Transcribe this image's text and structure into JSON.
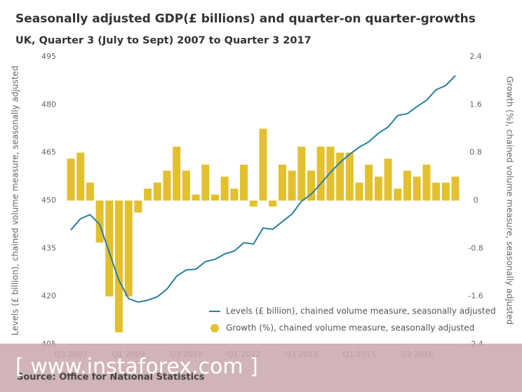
{
  "chart_data": {
    "type": "combo",
    "title": "Seasonally adjusted GDP(£ billions) and quarter-on quarter-growths",
    "subtitle": "UK, Quarter 3 (July to Sept) 2007 to Quarter 3 2017",
    "y_label": "Levels (£ billion), chained volume measure, seasonally adjusted",
    "y2_label": "Growth (%), chained volume measure, seasonally adjusted",
    "categories": [
      "Q3 2007",
      null,
      null,
      null,
      null,
      null,
      "Q1 2009",
      null,
      null,
      null,
      null,
      null,
      "Q3 2010",
      null,
      null,
      null,
      null,
      null,
      "Q1 2012",
      null,
      null,
      null,
      null,
      null,
      "Q3 2013",
      null,
      null,
      null,
      null,
      null,
      "Q1 2015",
      null,
      null,
      null,
      null,
      null,
      "Q3 2016",
      null,
      null,
      null,
      null
    ],
    "series": [
      {
        "name": "Levels (£ billion), chained volume measure, seasonally adjusted",
        "type": "line",
        "axis": "y",
        "color": "#2a7fa0",
        "values": [
          440.8,
          444.3,
          445.6,
          442.5,
          433.7,
          425,
          419.3,
          418.2,
          418.8,
          419.9,
          422.3,
          426.3,
          428.3,
          428.5,
          430.9,
          431.6,
          433.3,
          434.2,
          436.8,
          436.4,
          441.4,
          441,
          443.4,
          445.8,
          449.8,
          452,
          455.3,
          458.8,
          461.9,
          464.5,
          466.7,
          468.4,
          471.1,
          473,
          476.6,
          477.2,
          479.4,
          481.4,
          484.7,
          486,
          489.1
        ]
      },
      {
        "name": "Growth (%), chained volume measure, seasonally adjusted",
        "type": "bar",
        "axis": "y2",
        "color": "#e3c02e",
        "values": [
          0.7,
          0.8,
          0.3,
          -0.7,
          -1.6,
          -2.2,
          -1.6,
          -0.2,
          0.2,
          0.3,
          0.5,
          0.9,
          0.5,
          0.1,
          0.6,
          0.1,
          0.4,
          0.2,
          0.6,
          -0.1,
          1.2,
          -0.1,
          0.6,
          0.5,
          0.9,
          0.5,
          0.9,
          0.9,
          0.8,
          0.8,
          0.3,
          0.6,
          0.4,
          0.7,
          0.2,
          0.5,
          0.4,
          0.6,
          0.3,
          0.3,
          0.4
        ]
      }
    ],
    "ylim": [
      405,
      495
    ],
    "yticks": [
      405,
      420,
      435,
      450,
      465,
      480,
      495
    ],
    "y2lim": [
      -2.4,
      2.4
    ],
    "y2ticks": [
      -2.4,
      -1.6,
      -0.8,
      0,
      0.8,
      1.6,
      2.4
    ],
    "grid": false,
    "legend": "lower right"
  },
  "source": "Source: Office for National Statistics",
  "watermark": "[ www.instaforex.com ]"
}
